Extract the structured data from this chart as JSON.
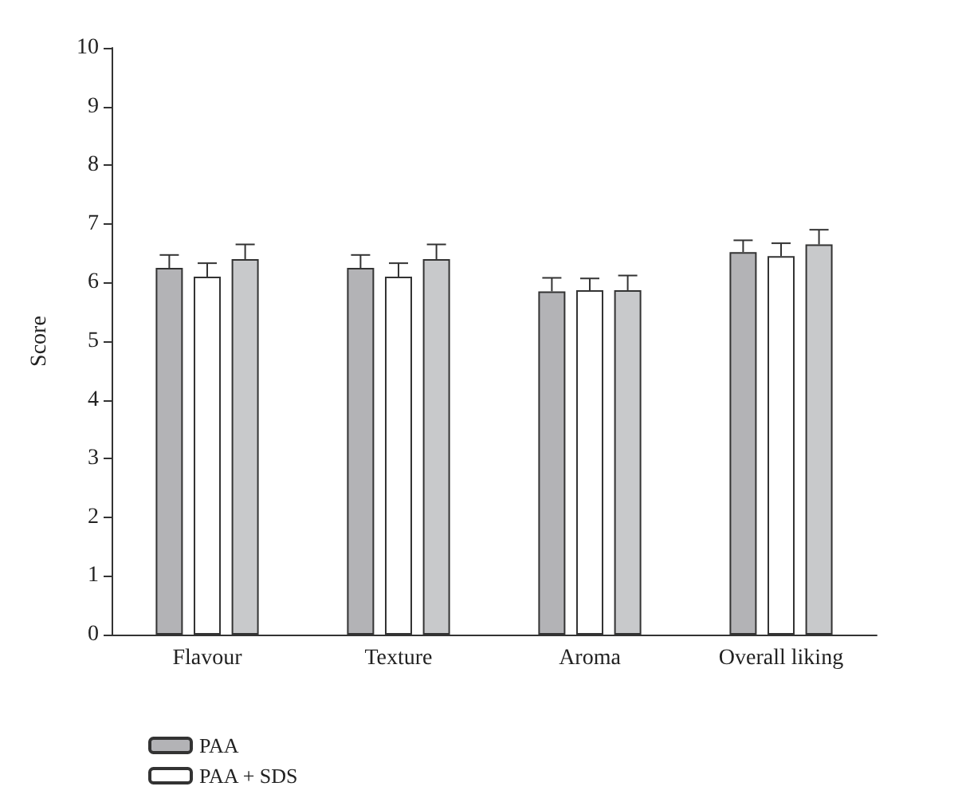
{
  "chart_data": {
    "type": "bar",
    "ylabel": "Score",
    "categories": [
      "Flavour",
      "Texture",
      "Aroma",
      "Overall liking"
    ],
    "series": [
      {
        "name": "PAA",
        "color": "#b3b3b6",
        "values": [
          6.25,
          6.25,
          5.85,
          6.52
        ],
        "errors": [
          [
            6.25,
            6.47
          ],
          [
            6.25,
            6.47
          ],
          [
            5.85,
            6.08
          ],
          [
            6.52,
            6.72
          ]
        ]
      },
      {
        "name": "PAA + SDS",
        "color": "#ffffff",
        "values": [
          6.1,
          6.1,
          5.87,
          6.45
        ],
        "errors": [
          [
            6.1,
            6.33
          ],
          [
            6.1,
            6.33
          ],
          [
            5.87,
            6.07
          ],
          [
            6.45,
            6.67
          ]
        ]
      },
      {
        "color": "#c8c9cb",
        "values": [
          6.4,
          6.4,
          5.87,
          6.65
        ],
        "errors": [
          [
            6.4,
            6.65
          ],
          [
            6.4,
            6.65
          ],
          [
            5.87,
            6.12
          ],
          [
            6.65,
            6.9
          ]
        ]
      }
    ],
    "ylim": [
      0,
      10
    ],
    "yticks": [
      0,
      1,
      2,
      3,
      4,
      5,
      6,
      7,
      8,
      9,
      10
    ],
    "grid": false,
    "legend": "bottom left"
  }
}
